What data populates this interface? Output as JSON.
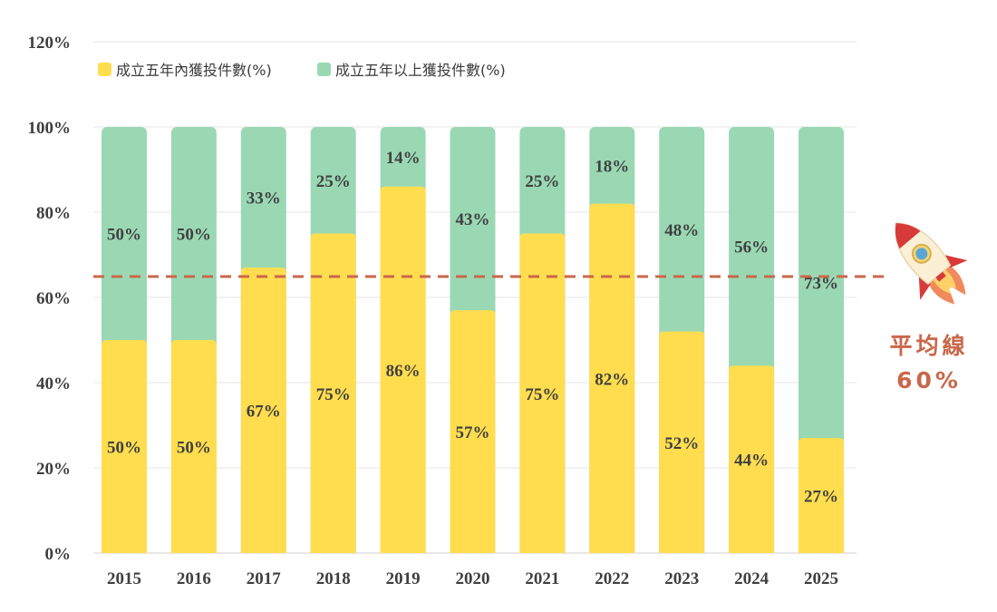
{
  "chart_data": {
    "type": "bar",
    "stacked": true,
    "categories": [
      "2015",
      "2016",
      "2017",
      "2018",
      "2019",
      "2020",
      "2021",
      "2022",
      "2023",
      "2024",
      "2025"
    ],
    "series": [
      {
        "name": "成立五年內獲投件數(%)",
        "values": [
          50,
          50,
          67,
          75,
          86,
          57,
          75,
          82,
          52,
          44,
          27
        ],
        "labels": [
          "50%",
          "50%",
          "67%",
          "75%",
          "86%",
          "57%",
          "75%",
          "82%",
          "52%",
          "44%",
          "27%"
        ],
        "color": "#FFDD4F"
      },
      {
        "name": "成立五年以上獲投件數(%)",
        "values": [
          50,
          50,
          33,
          25,
          14,
          43,
          25,
          18,
          48,
          56,
          73
        ],
        "labels": [
          "50%",
          "50%",
          "33%",
          "25%",
          "14%",
          "43%",
          "25%",
          "18%",
          "48%",
          "56%",
          "73%"
        ],
        "color": "#9AD8B4"
      }
    ],
    "y_ticks": [
      "0%",
      "20%",
      "40%",
      "60%",
      "80%",
      "100%",
      "120%"
    ],
    "ylim": [
      0,
      120
    ],
    "grid": true,
    "legend_position": "top-left",
    "reference_line": {
      "value": 60,
      "label_line1": "平均線",
      "label_line2": "60%",
      "color": "#C9674A"
    },
    "decoration_icon": "rocket-icon"
  }
}
